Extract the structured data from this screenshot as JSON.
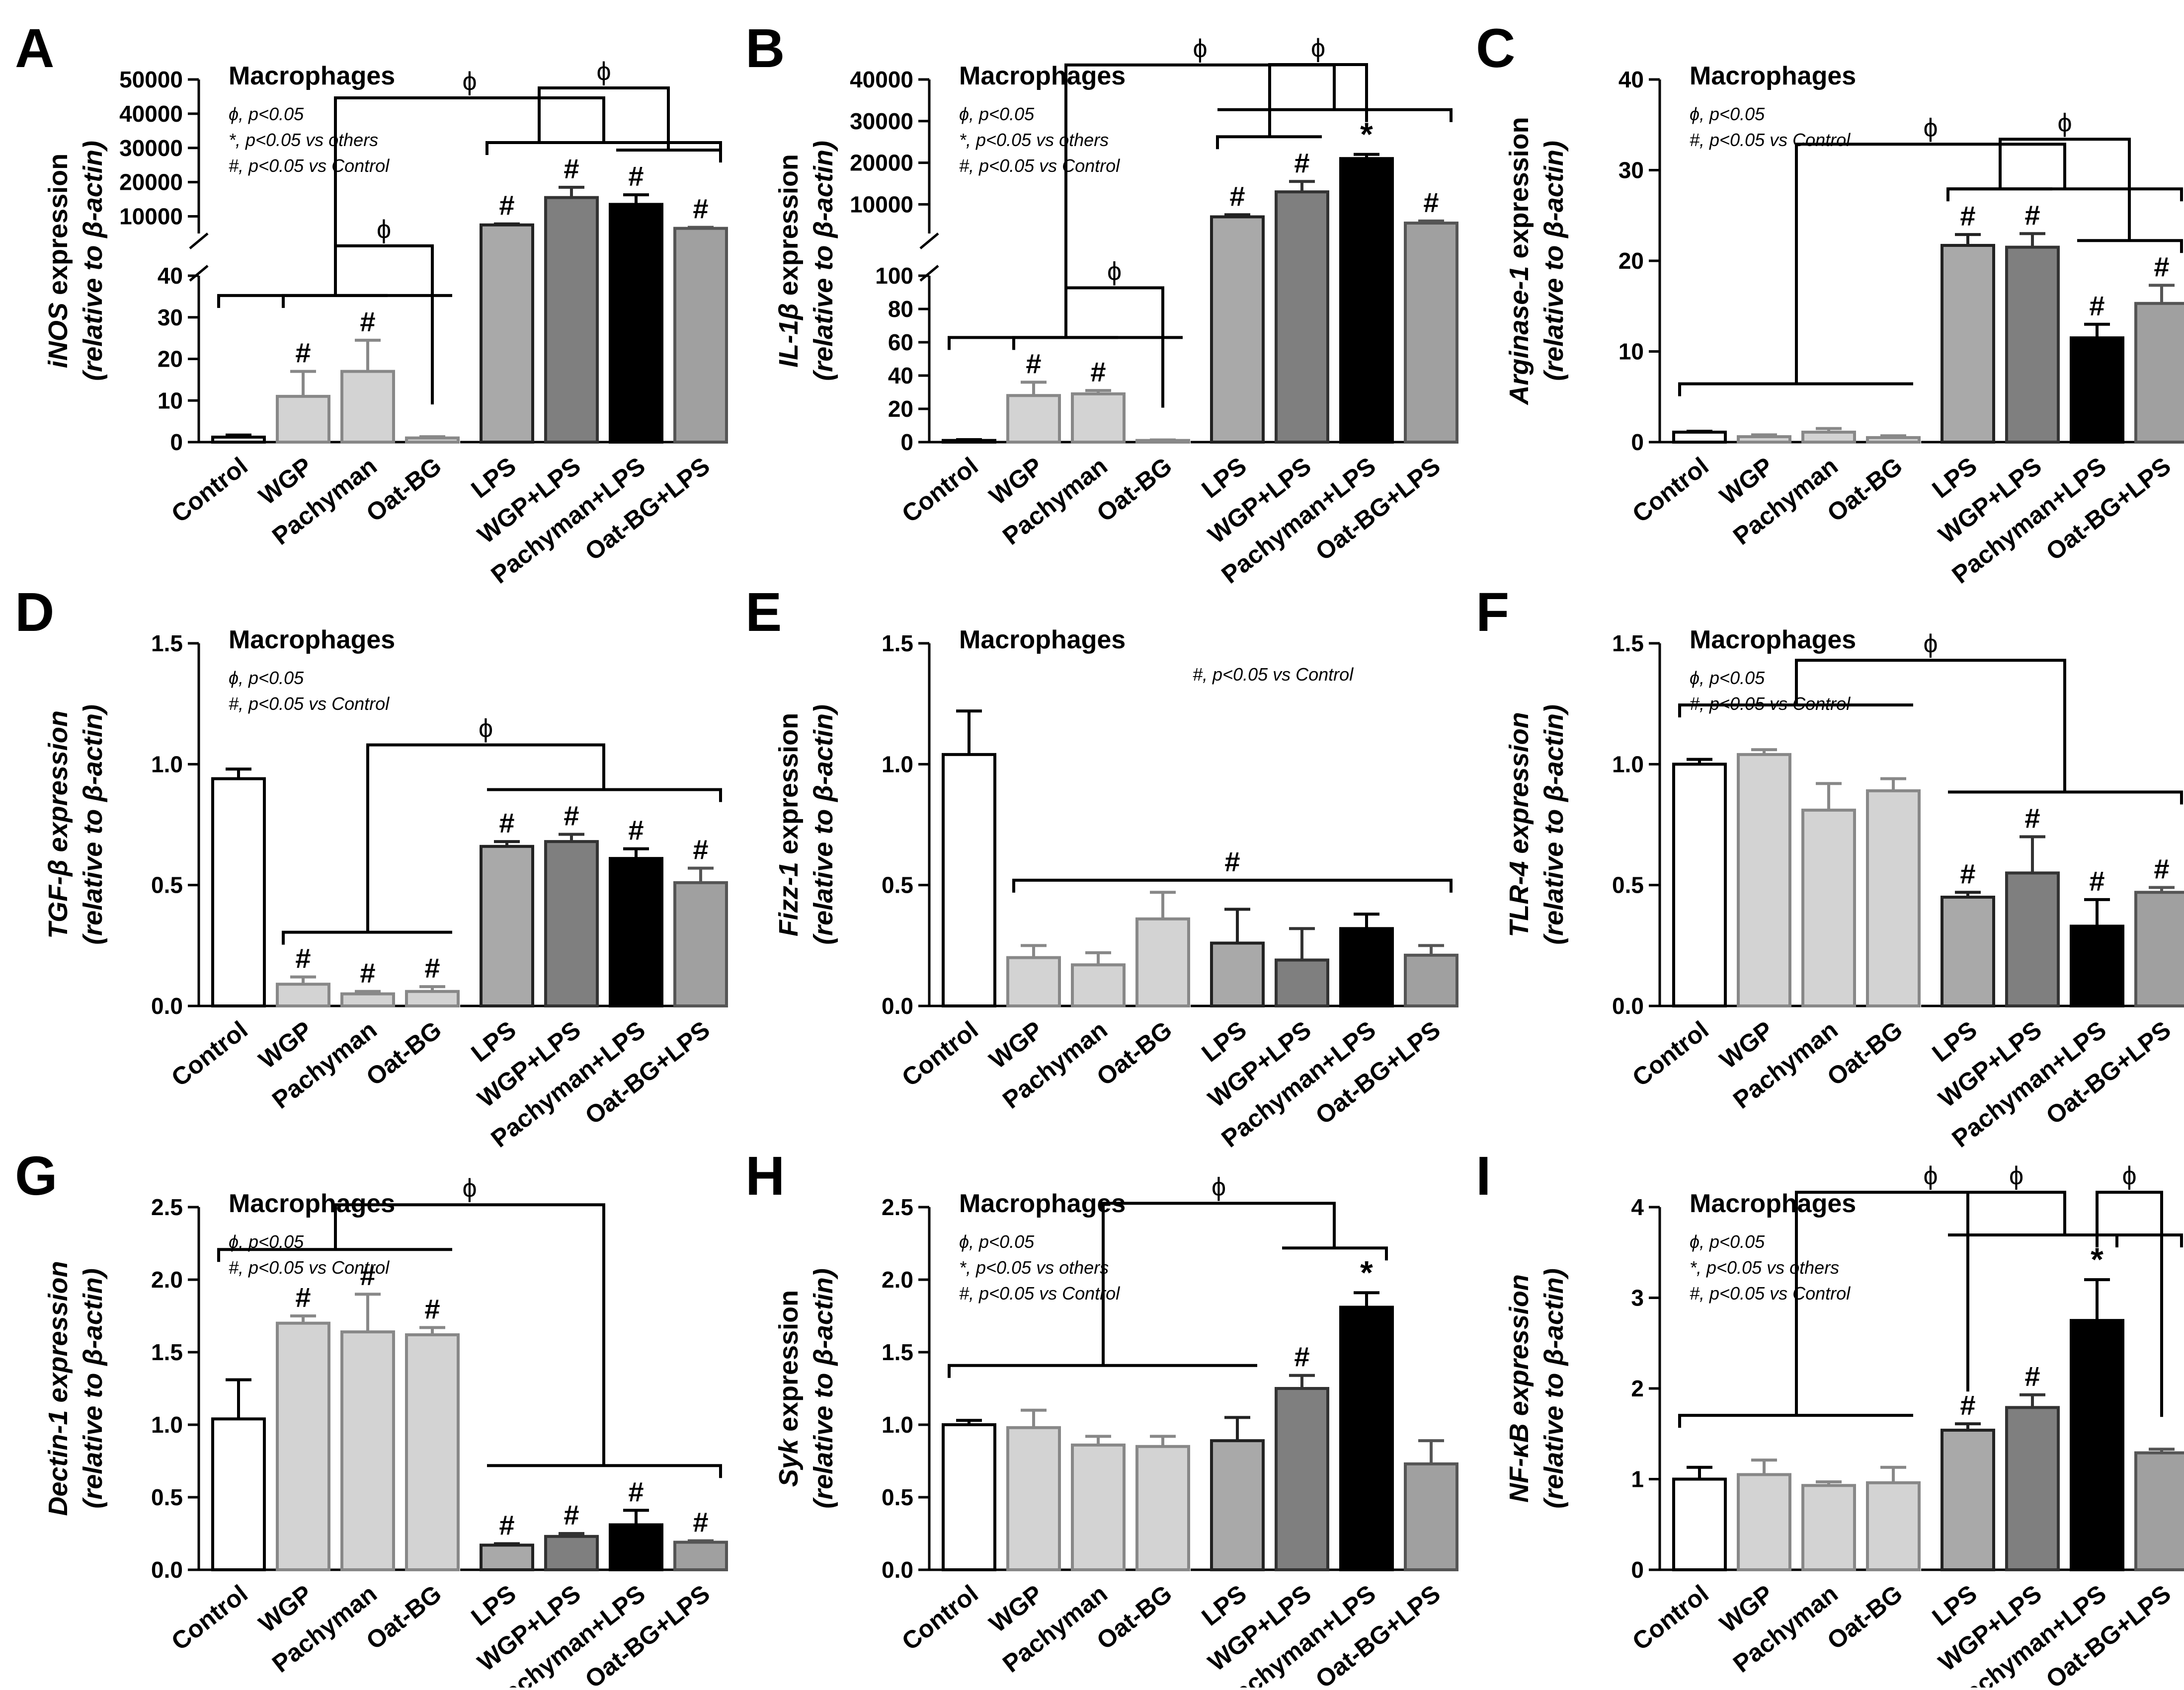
{
  "colors": {
    "control": "#ffffff",
    "treat": "#d3d3d3",
    "lps": "#a9a9a9",
    "wgp_lps": "#7f7f7f",
    "pachyman_lps": "#000000",
    "oat_lps": "#a0a0a0",
    "outline": "#000000"
  },
  "chart_data": [
    {
      "panel": "A",
      "type": "bar",
      "title": "Macrophages",
      "ylabel_gene": "iNOS",
      "ylabel_rest": " expression",
      "ylabel_line2": "(relative to β-actin)",
      "broken_axis": true,
      "categories": [
        "Control",
        "WGP",
        "Pachyman",
        "Oat-BG",
        "LPS",
        "WGP+LPS",
        "Pachyman+LPS",
        "Oat-BG+LPS"
      ],
      "values": [
        1.2,
        11,
        17,
        1,
        7500,
        15500,
        13500,
        6500
      ],
      "errors": [
        0.5,
        6,
        7.5,
        0.3,
        300,
        3000,
        2800,
        300
      ],
      "lower_range": [
        0,
        40
      ],
      "lower_ticks": [
        0,
        10,
        20,
        30,
        40
      ],
      "upper_range": [
        5000,
        50000
      ],
      "upper_ticks": [
        10000,
        20000,
        30000,
        40000,
        50000
      ],
      "marks": [
        "",
        "#",
        "#",
        "",
        "#",
        "#",
        "#",
        "#"
      ],
      "legend": [
        "ϕ, p<0.05",
        "*, p<0.05 vs others",
        "#, p<0.05 vs Control"
      ],
      "brackets": [
        {
          "left": [
            0,
            3
          ],
          "right": [
            4,
            7
          ],
          "label": "ϕ"
        },
        {
          "left": [
            1,
            2
          ],
          "right": [
            3,
            3
          ],
          "label": "ϕ"
        },
        {
          "left": [
            4,
            5
          ],
          "right": [
            6,
            7
          ],
          "label": "ϕ"
        }
      ]
    },
    {
      "panel": "B",
      "type": "bar",
      "title": "Macrophages",
      "ylabel_gene": "IL-1β",
      "ylabel_rest": " expression",
      "ylabel_line2": "(relative to β-actin)",
      "broken_axis": true,
      "categories": [
        "Control",
        "WGP",
        "Pachyman",
        "Oat-BG",
        "LPS",
        "WGP+LPS",
        "Pachyman+LPS",
        "Oat-BG+LPS"
      ],
      "values": [
        1,
        28,
        29,
        1,
        7000,
        13000,
        21000,
        5500
      ],
      "errors": [
        0.5,
        8,
        2,
        0.3,
        500,
        2500,
        1000,
        500
      ],
      "lower_range": [
        0,
        100
      ],
      "lower_ticks": [
        0,
        20,
        40,
        60,
        80,
        100
      ],
      "upper_range": [
        3000,
        40000
      ],
      "upper_ticks": [
        10000,
        20000,
        30000,
        40000
      ],
      "marks": [
        "",
        "#",
        "#",
        "",
        "#",
        "#",
        "*",
        "#"
      ],
      "legend": [
        "ϕ, p<0.05",
        "*, p<0.05 vs others",
        "#, p<0.05 vs Control"
      ],
      "brackets": [
        {
          "left": [
            0,
            3
          ],
          "right": [
            4,
            7
          ],
          "label": "ϕ"
        },
        {
          "left": [
            1,
            2
          ],
          "right": [
            3,
            3
          ],
          "label": "ϕ"
        },
        {
          "left": [
            4,
            5
          ],
          "right": [
            6,
            6
          ],
          "label": "ϕ"
        }
      ]
    },
    {
      "panel": "C",
      "type": "bar",
      "title": "Macrophages",
      "ylabel_gene": "Arginase-1",
      "ylabel_rest": " expression",
      "ylabel_line2": "(relative to β-actin)",
      "broken_axis": false,
      "categories": [
        "Control",
        "WGP",
        "Pachyman",
        "Oat-BG",
        "LPS",
        "WGP+LPS",
        "Pachyman+LPS",
        "Oat-BG+LPS"
      ],
      "values": [
        1.1,
        0.6,
        1.1,
        0.5,
        21.7,
        21.5,
        11.5,
        15.3
      ],
      "errors": [
        0.1,
        0.2,
        0.4,
        0.2,
        1.2,
        1.5,
        1.5,
        2
      ],
      "ylim": [
        0,
        40
      ],
      "ticks": [
        0,
        10,
        20,
        30,
        40
      ],
      "marks": [
        "",
        "",
        "",
        "",
        "#",
        "#",
        "#",
        "#"
      ],
      "legend": [
        "ϕ, p<0.05",
        "#, p<0.05 vs Control"
      ],
      "brackets": [
        {
          "left": [
            0,
            3
          ],
          "right": [
            4,
            7
          ],
          "label": "ϕ"
        },
        {
          "left": [
            4,
            5
          ],
          "right": [
            6,
            7
          ],
          "label": "ϕ"
        }
      ]
    },
    {
      "panel": "D",
      "type": "bar",
      "title": "Macrophages",
      "ylabel_gene": "TGF-β expression",
      "ylabel_rest": "",
      "ylabel_line2": "(relative to β-actin)",
      "broken_axis": false,
      "categories": [
        "Control",
        "WGP",
        "Pachyman",
        "Oat-BG",
        "LPS",
        "WGP+LPS",
        "Pachyman+LPS",
        "Oat-BG+LPS"
      ],
      "values": [
        0.94,
        0.09,
        0.05,
        0.06,
        0.66,
        0.68,
        0.61,
        0.51
      ],
      "errors": [
        0.04,
        0.03,
        0.01,
        0.02,
        0.02,
        0.03,
        0.04,
        0.06
      ],
      "ylim": [
        0,
        1.5
      ],
      "ticks": [
        0.0,
        0.5,
        1.0,
        1.5
      ],
      "marks": [
        "",
        "#",
        "#",
        "#",
        "#",
        "#",
        "#",
        "#"
      ],
      "legend": [
        "ϕ, p<0.05",
        "#, p<0.05 vs Control"
      ],
      "brackets": [
        {
          "left": [
            1,
            3
          ],
          "right": [
            4,
            7
          ],
          "label": "ϕ"
        }
      ]
    },
    {
      "panel": "E",
      "type": "bar",
      "title": "Macrophages",
      "ylabel_gene": "Fizz-1",
      "ylabel_rest": " expression",
      "ylabel_line2": "(relative to β-actin)",
      "broken_axis": false,
      "categories": [
        "Control",
        "WGP",
        "Pachyman",
        "Oat-BG",
        "LPS",
        "WGP+LPS",
        "Pachyman+LPS",
        "Oat-BG+LPS"
      ],
      "values": [
        1.04,
        0.2,
        0.17,
        0.36,
        0.26,
        0.19,
        0.32,
        0.21
      ],
      "errors": [
        0.18,
        0.05,
        0.05,
        0.11,
        0.14,
        0.13,
        0.06,
        0.04
      ],
      "ylim": [
        0,
        1.5
      ],
      "ticks": [
        0.0,
        0.5,
        1.0,
        1.5
      ],
      "marks": [
        "",
        "",
        "",
        "",
        "",
        "",
        "",
        ""
      ],
      "legend_inline": "#, p<0.05 vs Control",
      "span_bracket": {
        "from": 1,
        "to": 7,
        "label": "#"
      }
    },
    {
      "panel": "F",
      "type": "bar",
      "title": "Macrophages",
      "ylabel_gene": "TLR-4 expression",
      "ylabel_rest": "",
      "ylabel_line2": "(relative to β-actin)",
      "broken_axis": false,
      "categories": [
        "Control",
        "WGP",
        "Pachyman",
        "Oat-BG",
        "LPS",
        "WGP+LPS",
        "Pachyman+LPS",
        "Oat-BG+LPS"
      ],
      "values": [
        1.0,
        1.04,
        0.81,
        0.89,
        0.45,
        0.55,
        0.33,
        0.47
      ],
      "errors": [
        0.02,
        0.02,
        0.11,
        0.05,
        0.02,
        0.15,
        0.11,
        0.02
      ],
      "ylim": [
        0,
        1.5
      ],
      "ticks": [
        0.0,
        0.5,
        1.0,
        1.5
      ],
      "marks": [
        "",
        "",
        "",
        "",
        "#",
        "#",
        "#",
        "#"
      ],
      "legend": [
        "ϕ, p<0.05",
        "#, p<0.05 vs Control"
      ],
      "brackets": [
        {
          "left": [
            0,
            3
          ],
          "right": [
            4,
            7
          ],
          "label": "ϕ"
        }
      ]
    },
    {
      "panel": "G",
      "type": "bar",
      "title": "Macrophages",
      "ylabel_gene": "Dectin-1 expression",
      "ylabel_rest": "",
      "ylabel_line2": "(relative to β-actin)",
      "broken_axis": false,
      "categories": [
        "Control",
        "WGP",
        "Pachyman",
        "Oat-BG",
        "LPS",
        "WGP+LPS",
        "Pachyman+LPS",
        "Oat-BG+LPS"
      ],
      "values": [
        1.04,
        1.7,
        1.64,
        1.62,
        0.17,
        0.23,
        0.31,
        0.19
      ],
      "errors": [
        0.27,
        0.05,
        0.26,
        0.05,
        0.01,
        0.02,
        0.1,
        0.01
      ],
      "ylim": [
        0,
        2.5
      ],
      "ticks": [
        0.0,
        0.5,
        1.0,
        1.5,
        2.0,
        2.5
      ],
      "marks": [
        "",
        "#",
        "#",
        "#",
        "#",
        "#",
        "#",
        "#"
      ],
      "legend": [
        "ϕ, p<0.05",
        "#, p<0.05 vs Control"
      ],
      "brackets": [
        {
          "left": [
            0,
            3
          ],
          "right": [
            4,
            7
          ],
          "label": "ϕ"
        }
      ]
    },
    {
      "panel": "H",
      "type": "bar",
      "title": "Macrophages",
      "ylabel_gene": "Syk",
      "ylabel_rest": " expression",
      "ylabel_line2": "(relative to β-actin)",
      "broken_axis": false,
      "categories": [
        "Control",
        "WGP",
        "Pachyman",
        "Oat-BG",
        "LPS",
        "WGP+LPS",
        "Pachyman+LPS",
        "Oat-BG+LPS"
      ],
      "values": [
        1.0,
        0.98,
        0.86,
        0.85,
        0.89,
        1.25,
        1.81,
        0.73
      ],
      "errors": [
        0.03,
        0.12,
        0.06,
        0.07,
        0.16,
        0.09,
        0.1,
        0.16
      ],
      "ylim": [
        0,
        2.5
      ],
      "ticks": [
        0.0,
        0.5,
        1.0,
        1.5,
        2.0,
        2.5
      ],
      "marks": [
        "",
        "",
        "",
        "",
        "",
        "#",
        "*",
        ""
      ],
      "legend": [
        "ϕ, p<0.05",
        "*, p<0.05 vs others",
        "#, p<0.05 vs Control"
      ],
      "brackets": [
        {
          "left": [
            0,
            4
          ],
          "right": [
            5,
            6
          ],
          "label": "ϕ"
        }
      ]
    },
    {
      "panel": "I",
      "type": "bar",
      "title": "Macrophages",
      "ylabel_gene": "NF-κB expression",
      "ylabel_rest": "",
      "ylabel_line2": "(relative to β-actin)",
      "broken_axis": false,
      "categories": [
        "Control",
        "WGP",
        "Pachyman",
        "Oat-BG",
        "LPS",
        "WGP+LPS",
        "Pachyman+LPS",
        "Oat-BG+LPS"
      ],
      "values": [
        1.0,
        1.05,
        0.93,
        0.96,
        1.54,
        1.79,
        2.75,
        1.29
      ],
      "errors": [
        0.13,
        0.16,
        0.04,
        0.17,
        0.07,
        0.14,
        0.45,
        0.04
      ],
      "ylim": [
        0,
        4
      ],
      "ticks": [
        0,
        1,
        2,
        3,
        4
      ],
      "marks": [
        "",
        "",
        "",
        "",
        "#",
        "#",
        "*",
        ""
      ],
      "legend": [
        "ϕ, p<0.05",
        "*, p<0.05 vs others",
        "#, p<0.05 vs Control"
      ],
      "brackets": [
        {
          "left": [
            0,
            3
          ],
          "right": [
            4,
            7
          ],
          "label": "ϕ"
        },
        {
          "left": [
            4,
            4
          ],
          "right": [
            5,
            6
          ],
          "label": "ϕ"
        },
        {
          "left": [
            6,
            6
          ],
          "right": [
            7,
            7
          ],
          "label": "ϕ"
        }
      ]
    }
  ]
}
